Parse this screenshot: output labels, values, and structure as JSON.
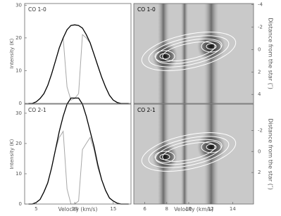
{
  "chart_data": [
    {
      "type": "line",
      "annotation": "CO 1-0",
      "ylabel": "Intensity (K)",
      "xlim": [
        3.5,
        17.3
      ],
      "ylim": [
        0,
        30.5
      ],
      "yticks": [
        0,
        10,
        20,
        30
      ],
      "x": [
        4,
        4.5,
        5,
        5.5,
        6,
        6.5,
        7,
        7.5,
        8,
        8.5,
        9,
        9.5,
        10,
        10.5,
        11,
        11.5,
        12,
        12.5,
        13,
        13.5,
        14,
        14.5,
        15,
        15.5,
        16,
        16.5,
        17
      ],
      "series": [
        {
          "color": "#000000",
          "values": [
            0,
            0,
            0.5,
            1.5,
            3,
            5.5,
            9,
            13,
            17,
            20,
            22.5,
            23.8,
            24,
            23.8,
            23,
            21,
            18.5,
            15,
            11.5,
            8,
            5,
            2.5,
            1,
            0.3,
            0,
            0,
            0
          ]
        },
        {
          "color": "#a8a8a8",
          "values": [
            0,
            0,
            0.5,
            1.5,
            3,
            5.5,
            9,
            13,
            17,
            20,
            5,
            1,
            1.5,
            3,
            21,
            20,
            18.5,
            15,
            11.5,
            8,
            5,
            2.5,
            1,
            0.3,
            0,
            0,
            0
          ]
        }
      ]
    },
    {
      "type": "image",
      "annotation": "CO 1-0",
      "ylabel": "Distance from the star (″)",
      "xlim": [
        5,
        15.9
      ],
      "ylim": [
        4.8,
        -4.1
      ],
      "yticks": [
        -4,
        -2,
        0,
        2,
        4
      ]
    },
    {
      "type": "line",
      "annotation": "CO 2-1",
      "ylabel": "Intensity (K)",
      "xlabel": "Velocity (km/s)",
      "xlim": [
        3.5,
        17.3
      ],
      "ylim": [
        0,
        33
      ],
      "xticks": [
        5,
        10,
        15
      ],
      "yticks": [
        0,
        10,
        20,
        30
      ],
      "x": [
        4,
        4.5,
        5,
        5.5,
        6,
        6.5,
        7,
        7.5,
        8,
        8.5,
        9,
        9.5,
        10,
        10.5,
        11,
        11.5,
        12,
        12.5,
        13,
        13.5,
        14,
        14.5,
        15,
        15.5,
        16,
        16.5,
        17
      ],
      "series": [
        {
          "color": "#000000",
          "values": [
            0,
            0,
            0.5,
            1.5,
            4,
            7,
            12,
            18,
            24,
            29,
            33,
            35,
            35,
            35,
            33,
            29,
            24,
            19,
            13,
            8,
            4.5,
            2,
            1,
            0.3,
            0,
            0,
            0
          ]
        },
        {
          "color": "#a8a8a8",
          "values": [
            0,
            0,
            0.5,
            1.5,
            4,
            7,
            12,
            18,
            22,
            24,
            5,
            0,
            0,
            1,
            18,
            20,
            22,
            18,
            12,
            8,
            4.5,
            2,
            1,
            0.3,
            0,
            0,
            0
          ]
        }
      ]
    },
    {
      "type": "image",
      "annotation": "CO 2-1",
      "ylabel": "Distance from the star (″)",
      "xlabel": "Velocity (km/s)",
      "xlim": [
        5,
        15.9
      ],
      "ylim": [
        5,
        -4.5
      ],
      "xticks": [
        6,
        8,
        10,
        12,
        14
      ],
      "yticks": [
        -2,
        0,
        2
      ]
    }
  ]
}
